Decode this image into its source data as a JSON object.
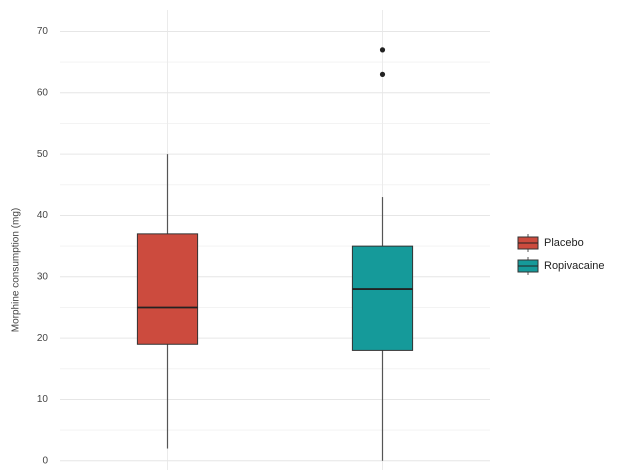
{
  "chart_data": {
    "type": "box",
    "y_label": "Morphine consumption (mg)",
    "ylim": [
      -1.5,
      73.5
    ],
    "yticks": [
      0,
      10,
      20,
      30,
      40,
      50,
      60,
      70
    ],
    "grid": true,
    "legend": "right",
    "series": [
      {
        "name": "Placebo",
        "color": "#cc4b3e",
        "min": 2,
        "q1": 19,
        "median": 25,
        "q3": 37,
        "max": 50,
        "outliers": []
      },
      {
        "name": "Ropivacaine",
        "color": "#159a9a",
        "min": 0,
        "q1": 18,
        "median": 28,
        "q3": 35,
        "max": 43,
        "outliers": [
          63,
          67
        ]
      }
    ]
  }
}
